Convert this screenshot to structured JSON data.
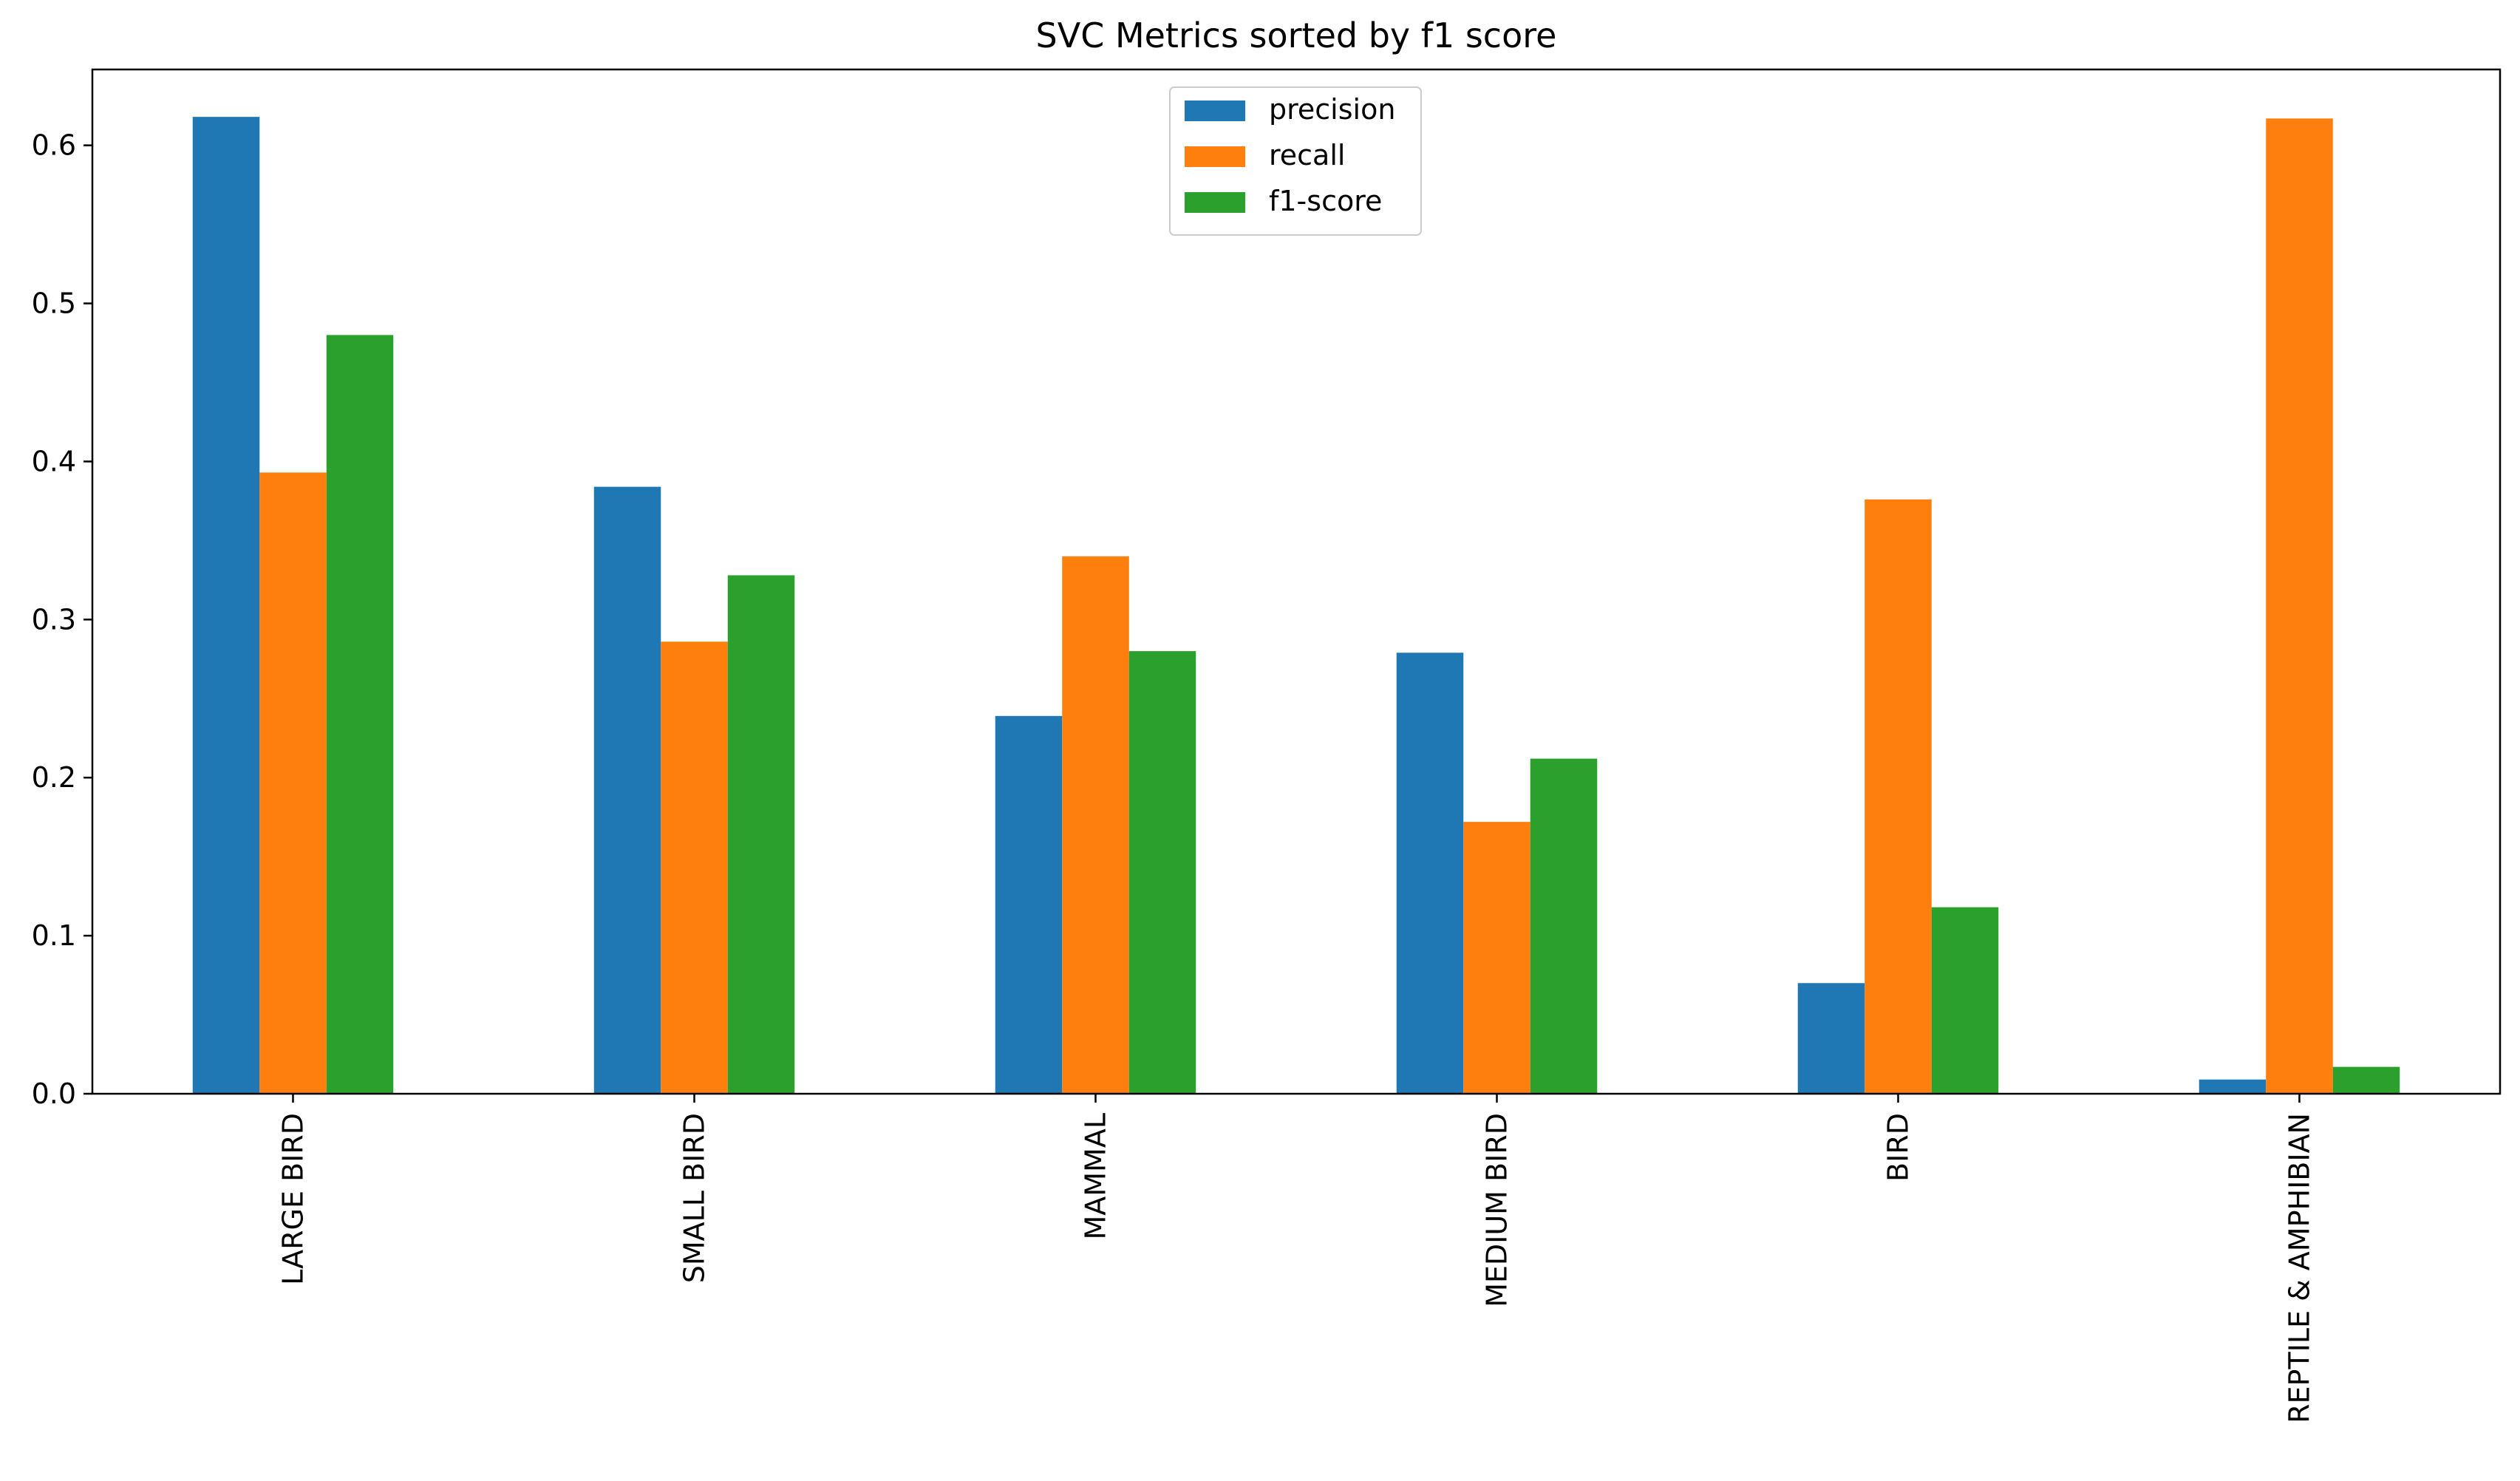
{
  "chart_data": {
    "type": "bar",
    "title": "SVC Metrics sorted by f1 score",
    "xlabel": "",
    "ylabel": "",
    "categories": [
      "LARGE BIRD",
      "SMALL BIRD",
      "MAMMAL",
      "MEDIUM BIRD",
      "BIRD",
      "REPTILE & AMPHIBIAN"
    ],
    "series": [
      {
        "name": "precision",
        "color": "#1f77b4",
        "values": [
          0.618,
          0.384,
          0.239,
          0.279,
          0.07,
          0.009
        ]
      },
      {
        "name": "recall",
        "color": "#ff7f0e",
        "values": [
          0.393,
          0.286,
          0.34,
          0.172,
          0.376,
          0.617
        ]
      },
      {
        "name": "f1-score",
        "color": "#2ca02c",
        "values": [
          0.48,
          0.328,
          0.28,
          0.212,
          0.118,
          0.017
        ]
      }
    ],
    "ylim": [
      0,
      0.648
    ],
    "yticks": [
      0.0,
      0.1,
      0.2,
      0.3,
      0.4,
      0.5,
      0.6
    ],
    "ytick_labels": [
      "0.0",
      "0.1",
      "0.2",
      "0.3",
      "0.4",
      "0.5",
      "0.6"
    ],
    "grid": false,
    "legend_position": "upper-center",
    "x_tick_rotation": "vertical"
  }
}
